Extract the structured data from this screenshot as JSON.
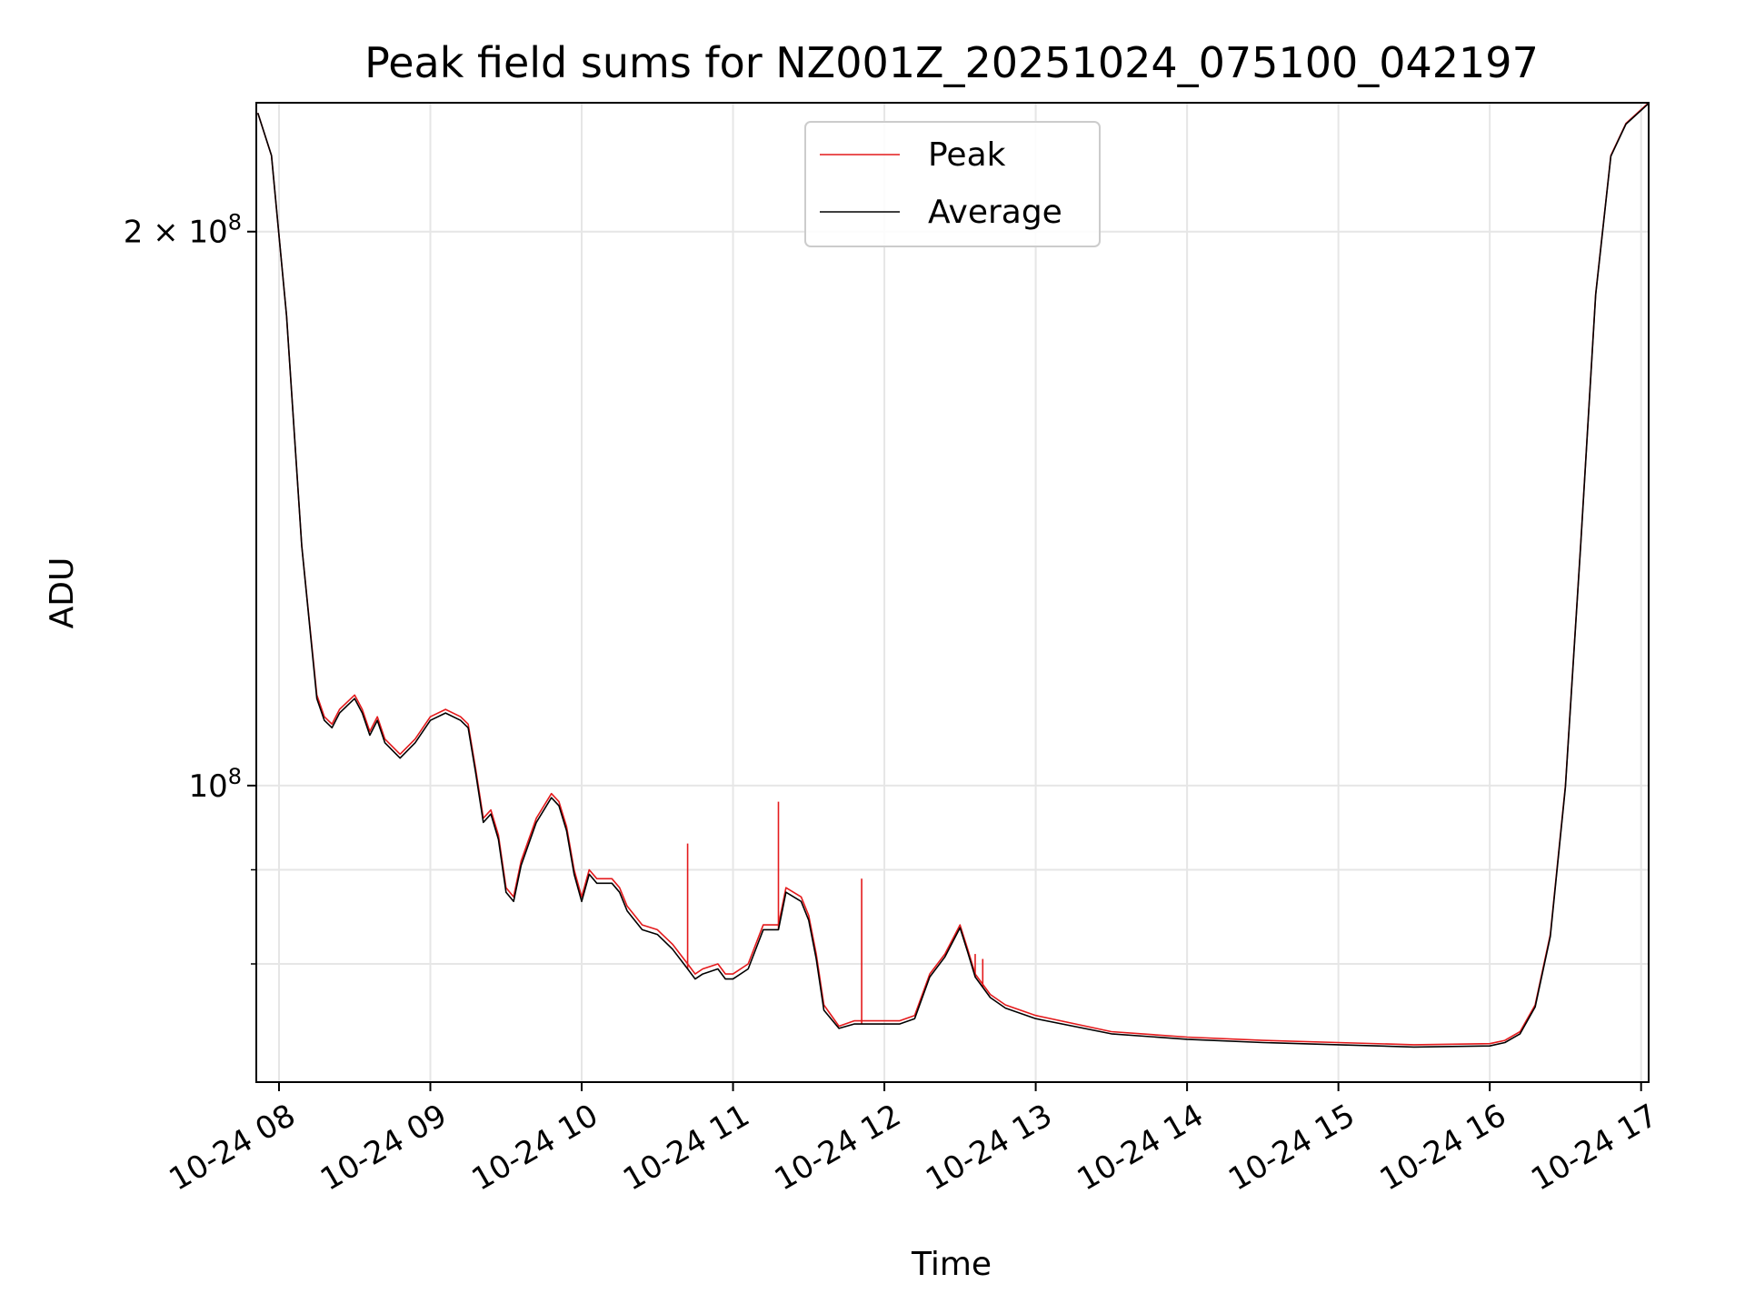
{
  "chart_data": {
    "type": "line",
    "title": "Peak field sums for NZ001Z_20251024_075100_042197",
    "xlabel": "Time",
    "ylabel": "ADU",
    "y_scale": "log",
    "ylim": [
      69000000,
      235000000
    ],
    "x_unit": "hours since 2025-10-24 00:00",
    "xlim": [
      7.85,
      17.05
    ],
    "grid": true,
    "legend_location": "upper center",
    "x_ticks": [
      {
        "value": 8,
        "label": "10-24 08"
      },
      {
        "value": 9,
        "label": "10-24 09"
      },
      {
        "value": 10,
        "label": "10-24 10"
      },
      {
        "value": 11,
        "label": "10-24 11"
      },
      {
        "value": 12,
        "label": "10-24 12"
      },
      {
        "value": 13,
        "label": "10-24 13"
      },
      {
        "value": 14,
        "label": "10-24 14"
      },
      {
        "value": 15,
        "label": "10-24 15"
      },
      {
        "value": 16,
        "label": "10-24 16"
      },
      {
        "value": 17,
        "label": "10-24 17"
      }
    ],
    "y_major_ticks": [
      {
        "value": 100000000,
        "base": "10",
        "exp": "8",
        "mantissa": ""
      },
      {
        "value": 200000000,
        "base": "10",
        "exp": "8",
        "mantissa": "2"
      }
    ],
    "y_minor_ticks": [
      80000000,
      90000000
    ],
    "series": [
      {
        "name": "Peak",
        "color": "#e41a1c",
        "x": [
          7.86,
          7.95,
          8.05,
          8.15,
          8.25,
          8.3,
          8.35,
          8.4,
          8.45,
          8.5,
          8.55,
          8.6,
          8.65,
          8.7,
          8.8,
          8.9,
          9.0,
          9.1,
          9.2,
          9.25,
          9.3,
          9.35,
          9.4,
          9.45,
          9.5,
          9.55,
          9.6,
          9.7,
          9.8,
          9.85,
          9.9,
          9.95,
          10.0,
          10.05,
          10.1,
          10.2,
          10.25,
          10.3,
          10.4,
          10.5,
          10.6,
          10.7,
          10.75,
          10.8,
          10.9,
          10.95,
          11.0,
          11.1,
          11.2,
          11.3,
          11.35,
          11.45,
          11.5,
          11.55,
          11.6,
          11.7,
          11.8,
          11.9,
          12.0,
          12.1,
          12.2,
          12.3,
          12.4,
          12.5,
          12.55,
          12.6,
          12.7,
          12.8,
          13.0,
          13.5,
          14.0,
          14.5,
          15.0,
          15.5,
          16.0,
          16.1,
          16.2,
          16.3,
          16.4,
          16.5,
          16.6,
          16.7,
          16.8,
          16.9,
          17.0,
          17.05
        ],
        "y": [
          232000000,
          220000000,
          180000000,
          135000000,
          112000000,
          109000000,
          108000000,
          110000000,
          111000000,
          112000000,
          110000000,
          107000000,
          109000000,
          106000000,
          104000000,
          106000000,
          109000000,
          110000000,
          109000000,
          108000000,
          102000000,
          96000000,
          97000000,
          94000000,
          88000000,
          87000000,
          91000000,
          96000000,
          99000000,
          98000000,
          95000000,
          90000000,
          87000000,
          90000000,
          89000000,
          89000000,
          88000000,
          86000000,
          84000000,
          83500000,
          82000000,
          80000000,
          79000000,
          79500000,
          80000000,
          79000000,
          79000000,
          80000000,
          84000000,
          84000000,
          88000000,
          87000000,
          85000000,
          81000000,
          76000000,
          74000000,
          74500000,
          74500000,
          74500000,
          74500000,
          75000000,
          79000000,
          81000000,
          84000000,
          81500000,
          79000000,
          77000000,
          76000000,
          75000000,
          73500000,
          73000000,
          72700000,
          72500000,
          72300000,
          72400000,
          72700000,
          73500000,
          76000000,
          83000000,
          100000000,
          135000000,
          185000000,
          220000000,
          229000000,
          233000000,
          235000000
        ]
      },
      {
        "name": "Average",
        "color": "#000000",
        "x": [
          7.86,
          7.95,
          8.05,
          8.15,
          8.25,
          8.3,
          8.35,
          8.4,
          8.45,
          8.5,
          8.55,
          8.6,
          8.65,
          8.7,
          8.8,
          8.9,
          9.0,
          9.1,
          9.2,
          9.25,
          9.3,
          9.35,
          9.4,
          9.45,
          9.5,
          9.55,
          9.6,
          9.7,
          9.8,
          9.85,
          9.9,
          9.95,
          10.0,
          10.05,
          10.1,
          10.2,
          10.25,
          10.3,
          10.4,
          10.5,
          10.6,
          10.7,
          10.75,
          10.8,
          10.9,
          10.95,
          11.0,
          11.1,
          11.2,
          11.3,
          11.35,
          11.45,
          11.5,
          11.55,
          11.6,
          11.7,
          11.8,
          11.9,
          12.0,
          12.1,
          12.2,
          12.3,
          12.4,
          12.5,
          12.55,
          12.6,
          12.7,
          12.8,
          13.0,
          13.5,
          14.0,
          14.5,
          15.0,
          15.5,
          16.0,
          16.1,
          16.2,
          16.3,
          16.4,
          16.5,
          16.6,
          16.7,
          16.8,
          16.9,
          17.0,
          17.05
        ],
        "y": [
          232000000,
          220000000,
          180000000,
          135000000,
          111500000,
          108500000,
          107500000,
          109500000,
          110500000,
          111500000,
          109500000,
          106500000,
          108500000,
          105500000,
          103500000,
          105500000,
          108500000,
          109500000,
          108500000,
          107500000,
          101500000,
          95500000,
          96500000,
          93500000,
          87500000,
          86500000,
          90500000,
          95500000,
          98500000,
          97500000,
          94500000,
          89500000,
          86500000,
          89500000,
          88500000,
          88500000,
          87500000,
          85500000,
          83500000,
          83000000,
          81500000,
          79500000,
          78500000,
          79000000,
          79500000,
          78500000,
          78500000,
          79500000,
          83500000,
          83500000,
          87500000,
          86500000,
          84500000,
          80500000,
          75500000,
          73800000,
          74200000,
          74200000,
          74200000,
          74200000,
          74700000,
          78700000,
          80700000,
          83700000,
          81200000,
          78700000,
          76700000,
          75700000,
          74700000,
          73300000,
          72800000,
          72500000,
          72300000,
          72100000,
          72200000,
          72500000,
          73300000,
          75800000,
          82800000,
          99800000,
          134800000,
          184800000,
          219800000,
          228800000,
          232800000,
          234800000
        ]
      }
    ],
    "peak_spikes": [
      {
        "x": 10.7,
        "y": 93000000
      },
      {
        "x": 11.3,
        "y": 98000000
      },
      {
        "x": 11.85,
        "y": 89000000
      },
      {
        "x": 12.6,
        "y": 81000000
      },
      {
        "x": 12.65,
        "y": 80500000
      }
    ]
  }
}
